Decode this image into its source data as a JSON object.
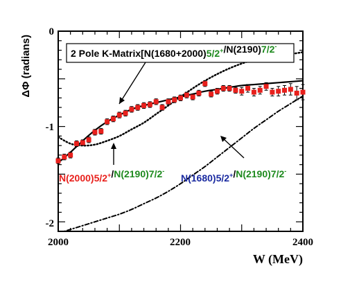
{
  "chart_data": {
    "type": "scatter",
    "xlabel": "W (MeV)",
    "ylabel": "ΔΦ (radians)",
    "xlim": [
      2000,
      2400
    ],
    "ylim": [
      -2.1,
      0
    ],
    "x_ticks": [
      "2000",
      "2200",
      "2400"
    ],
    "y_ticks": [
      "0",
      "-1",
      "-2"
    ],
    "grid": false,
    "colors": {
      "data_points": "#e8201c",
      "red_text": "#e8201c",
      "green_text": "#1e8a1e",
      "blue_text": "#1a2aa0",
      "curves": "#000000"
    },
    "series": [
      {
        "style": "markers-with-error-bars",
        "x": [
          2000,
          2010,
          2020,
          2030,
          2040,
          2050,
          2060,
          2070,
          2080,
          2090,
          2100,
          2110,
          2120,
          2130,
          2140,
          2150,
          2160,
          2170,
          2180,
          2190,
          2200,
          2210,
          2220,
          2230,
          2240,
          2250,
          2260,
          2270,
          2280,
          2290,
          2300,
          2310,
          2320,
          2330,
          2340,
          2350,
          2360,
          2370,
          2380,
          2390,
          2400
        ],
        "y": [
          -1.36,
          -1.32,
          -1.3,
          -1.18,
          -1.17,
          -1.14,
          -1.06,
          -1.05,
          -0.95,
          -0.92,
          -0.88,
          -0.86,
          -0.82,
          -0.8,
          -0.78,
          -0.77,
          -0.74,
          -0.8,
          -0.74,
          -0.72,
          -0.7,
          -0.67,
          -0.69,
          -0.65,
          -0.55,
          -0.66,
          -0.63,
          -0.6,
          -0.6,
          -0.62,
          -0.63,
          -0.6,
          -0.64,
          -0.62,
          -0.58,
          -0.64,
          -0.63,
          -0.62,
          -0.61,
          -0.65,
          -0.64
        ],
        "err": [
          0.03,
          0.03,
          0.03,
          0.03,
          0.03,
          0.03,
          0.03,
          0.03,
          0.03,
          0.03,
          0.03,
          0.03,
          0.03,
          0.03,
          0.03,
          0.03,
          0.03,
          0.03,
          0.03,
          0.03,
          0.03,
          0.03,
          0.03,
          0.03,
          0.03,
          0.03,
          0.03,
          0.03,
          0.03,
          0.03,
          0.04,
          0.04,
          0.04,
          0.04,
          0.04,
          0.04,
          0.05,
          0.05,
          0.06,
          0.07,
          0.08
        ]
      },
      {
        "style": "solid",
        "x": [
          2000,
          2020,
          2040,
          2060,
          2080,
          2100,
          2120,
          2140,
          2160,
          2180,
          2200,
          2220,
          2240,
          2260,
          2280,
          2300,
          2320,
          2340,
          2360,
          2380,
          2400
        ],
        "y": [
          -1.38,
          -1.27,
          -1.15,
          -1.04,
          -0.95,
          -0.88,
          -0.82,
          -0.78,
          -0.75,
          -0.72,
          -0.69,
          -0.66,
          -0.63,
          -0.61,
          -0.59,
          -0.57,
          -0.56,
          -0.55,
          -0.54,
          -0.53,
          -0.52
        ]
      },
      {
        "style": "dotted",
        "x": [
          2000,
          2020,
          2040,
          2060,
          2080,
          2100,
          2120,
          2140,
          2160,
          2180,
          2200,
          2220,
          2240,
          2260,
          2280,
          2300,
          2320,
          2340,
          2360,
          2380,
          2400
        ],
        "y": [
          -1.11,
          -1.18,
          -1.2,
          -1.19,
          -1.15,
          -1.1,
          -1.03,
          -0.96,
          -0.87,
          -0.78,
          -0.69,
          -0.6,
          -0.52,
          -0.45,
          -0.39,
          -0.34,
          -0.3,
          -0.27,
          -0.25,
          -0.24,
          -0.22
        ]
      },
      {
        "style": "dash-dot",
        "x": [
          2000,
          2020,
          2040,
          2060,
          2080,
          2100,
          2120,
          2140,
          2160,
          2180,
          2200,
          2220,
          2240,
          2260,
          2280,
          2300,
          2320,
          2340,
          2360,
          2380,
          2400
        ],
        "y": [
          -2.12,
          -2.08,
          -2.04,
          -2.0,
          -1.96,
          -1.92,
          -1.87,
          -1.81,
          -1.75,
          -1.68,
          -1.6,
          -1.51,
          -1.42,
          -1.32,
          -1.22,
          -1.12,
          -1.02,
          -0.93,
          -0.84,
          -0.76,
          -0.68
        ]
      }
    ],
    "annotations": {
      "box": [
        {
          "text": "2 Pole K-Matrix[N(1680+2000)",
          "color": "#000000"
        },
        {
          "text": "5/2",
          "color": "#1e8a1e"
        },
        {
          "text": "+",
          "color": "#1e8a1e",
          "sup": true
        },
        {
          "text": "/N(2190)",
          "color": "#000000"
        },
        {
          "text": "7/2",
          "color": "#1e8a1e"
        },
        {
          "text": "-",
          "color": "#1e8a1e",
          "sup": true
        }
      ],
      "left_label": [
        {
          "text": "N(2000)5/2",
          "color": "#e8201c"
        },
        {
          "text": "+",
          "color": "#e8201c",
          "sup": true
        },
        {
          "text": "/",
          "color": "#000000"
        },
        {
          "text": "N(2190)7/2",
          "color": "#1e8a1e"
        },
        {
          "text": "-",
          "color": "#1e8a1e",
          "sup": true
        }
      ],
      "right_label": [
        {
          "text": "N(1680)5/2",
          "color": "#1a2aa0"
        },
        {
          "text": "+",
          "color": "#1a2aa0",
          "sup": true
        },
        {
          "text": "/",
          "color": "#000000"
        },
        {
          "text": "N(2190)7/2",
          "color": "#1e8a1e"
        },
        {
          "text": "-",
          "color": "#1e8a1e",
          "sup": true
        }
      ]
    }
  }
}
